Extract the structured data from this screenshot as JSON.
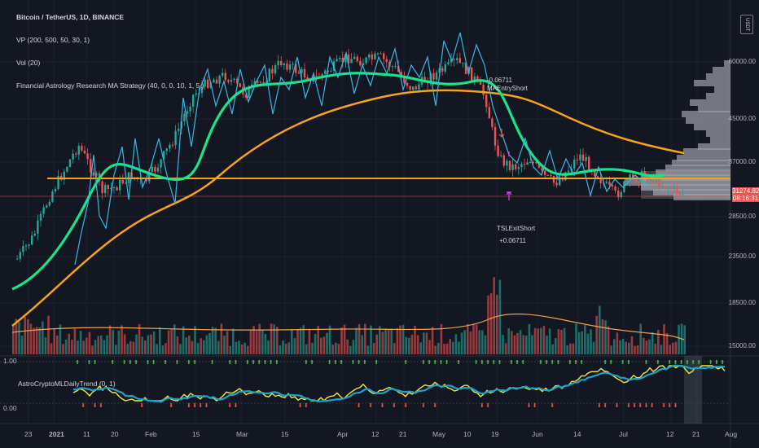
{
  "legend": {
    "symbol": "Bitcoin / TetherUS, 1D, BINANCE",
    "vp": "VP (200, 500, 50, 30, 1)",
    "vol": "Vol (20)",
    "strategy": "Financial Astrology Research MA Strategy (40, 0, 0, 10, 1, 5 )"
  },
  "oscillator": {
    "name": "AstroCryptoMLDailyTrend (0, 1)",
    "top_value": "1.00",
    "bottom_value": "0.00"
  },
  "currency_badge": "USDT",
  "current_price": {
    "price": "31274.82",
    "countdown": "08:16:31",
    "color": "#ef5350"
  },
  "price_axis": [
    "60000.00",
    "45000.00",
    "37000.00",
    "28500.00",
    "23500.00",
    "18500.00",
    "15000.00"
  ],
  "time_axis": [
    "23",
    "2021",
    "11",
    "20",
    "Feb",
    "15",
    "Mar",
    "15",
    "Apr",
    "12",
    "21",
    "May",
    "10",
    "19",
    "Jun",
    "14",
    "Jul",
    "12",
    "21",
    "Aug"
  ],
  "annotations": {
    "entry_pnl": "-0.06711",
    "entry_label": "MAEntryShort",
    "exit_label": "TSLExitShort",
    "exit_pnl": "+0.06711"
  },
  "colors": {
    "background": "#131722",
    "bull": "#26a69a",
    "bear": "#ef5350",
    "ma_fast": "#17e58a",
    "ma_slow": "#f7a21b",
    "cyan_line": "#38b7e4",
    "osc_yellow": "#f5e642",
    "osc_blue": "#1ca3c9"
  }
}
